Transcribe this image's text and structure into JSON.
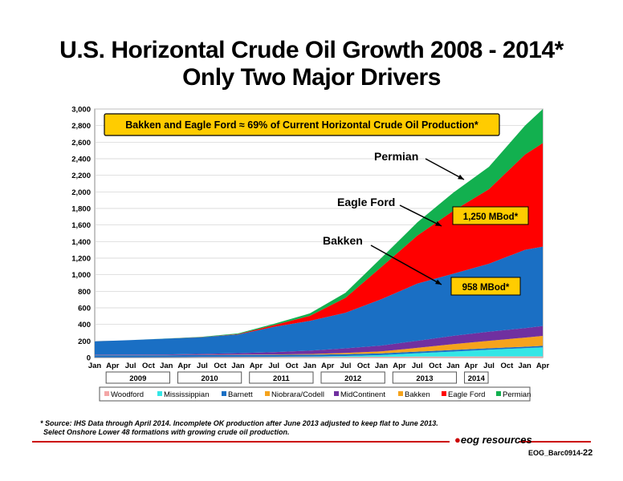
{
  "title_line1": "U.S. Horizontal Crude Oil Growth 2008 - 2014*",
  "title_line2": "Only Two Major Drivers",
  "footnote_line1": "* Source: IHS Data through April 2014. Incomplete OK production after June 2013 adjusted to keep flat to June 2013.",
  "footnote_line2": "Select Onshore Lower 48 formations with growing crude oil production.",
  "logo_text": "eog resources",
  "slide_code": "EOG_Barc0914-",
  "slide_number": "22",
  "colors": {
    "Woodford": "#f4a6a6",
    "Mississippian": "#33e6e6",
    "Barnett": "#1a6fc4",
    "Niobrara/Codell": "#f5a31c",
    "MidContinent": "#7030a0",
    "Bakken": "#1a6fc4",
    "Eagle Ford": "#ff0000",
    "Permian": "#12b04f",
    "callout_fill": "#ffcc00"
  },
  "chart_data": {
    "type": "area",
    "stacked": true,
    "ylim": [
      0,
      3000
    ],
    "yticks": [
      "0",
      "200",
      "400",
      "600",
      "800",
      "1,000",
      "1,200",
      "1,400",
      "1,600",
      "1,800",
      "2,000",
      "2,200",
      "2,400",
      "2,600",
      "2,800",
      "3,000"
    ],
    "xticks": [
      "Jan",
      "Apr",
      "Jul",
      "Oct",
      "Jan",
      "Apr",
      "Jul",
      "Oct",
      "Jan",
      "Apr",
      "Jul",
      "Oct",
      "Jan",
      "Apr",
      "Jul",
      "Oct",
      "Jan",
      "Apr",
      "Jul",
      "Oct",
      "Jan",
      "Apr",
      "Jul",
      "Oct",
      "Jan",
      "Apr"
    ],
    "years": [
      "2009",
      "2010",
      "2011",
      "2012",
      "2013",
      "2014"
    ],
    "x": [
      "2008-01",
      "2008-07",
      "2009-01",
      "2009-07",
      "2010-01",
      "2010-07",
      "2011-01",
      "2011-07",
      "2012-01",
      "2012-07",
      "2013-01",
      "2013-07",
      "2014-01",
      "2014-04"
    ],
    "series": [
      {
        "name": "Woodford",
        "values": [
          3,
          3,
          4,
          5,
          6,
          7,
          8,
          9,
          10,
          12,
          13,
          14,
          14,
          14
        ]
      },
      {
        "name": "Mississippian",
        "values": [
          0,
          0,
          0,
          1,
          2,
          3,
          5,
          10,
          20,
          40,
          60,
          80,
          100,
          110
        ]
      },
      {
        "name": "Barnett",
        "values": [
          25,
          25,
          24,
          24,
          23,
          23,
          22,
          22,
          20,
          20,
          19,
          18,
          17,
          17
        ]
      },
      {
        "name": "Niobrara/Codell",
        "values": [
          2,
          2,
          2,
          3,
          4,
          5,
          8,
          15,
          25,
          45,
          70,
          90,
          110,
          120
        ]
      },
      {
        "name": "MidContinent",
        "values": [
          5,
          6,
          8,
          12,
          18,
          28,
          40,
          55,
          70,
          85,
          100,
          110,
          115,
          120
        ]
      },
      {
        "name": "Bakken",
        "values": [
          160,
          175,
          190,
          200,
          225,
          305,
          360,
          430,
          560,
          690,
          750,
          820,
          945,
          958
        ]
      },
      {
        "name": "Eagle Ford",
        "values": [
          0,
          0,
          0,
          2,
          5,
          20,
          60,
          180,
          390,
          580,
          760,
          900,
          1150,
          1250
        ]
      },
      {
        "name": "Permian",
        "values": [
          0,
          0,
          2,
          4,
          8,
          15,
          30,
          60,
          110,
          160,
          220,
          270,
          350,
          410
        ]
      }
    ],
    "annotations": {
      "box": "Bakken and Eagle Ford ≈ 69% of Current Horizontal Crude Oil Production*",
      "permian_label": "Permian",
      "eagle_ford_label": "Eagle Ford",
      "bakken_label": "Bakken",
      "eagle_ford_value": "1,250 MBod*",
      "bakken_value": "958 MBod*"
    },
    "legend": [
      "Woodford",
      "Mississippian",
      "Barnett",
      "Niobrara/Codell",
      "MidContinent",
      "Bakken",
      "Eagle Ford",
      "Permian"
    ]
  }
}
